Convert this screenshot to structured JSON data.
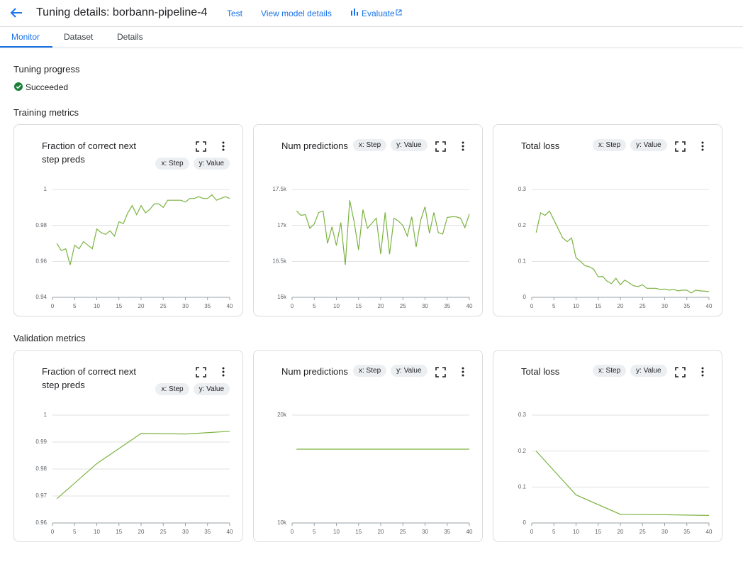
{
  "header": {
    "title": "Tuning details: borbann-pipeline-4",
    "links": [
      "Test",
      "View model details",
      "Evaluate"
    ]
  },
  "tabs": [
    "Monitor",
    "Dataset",
    "Details"
  ],
  "progress": {
    "title": "Tuning progress",
    "status": "Succeeded"
  },
  "training_metrics": {
    "title": "Training metrics",
    "charts": [
      {
        "type": "line",
        "title": "Fraction of correct next step preds",
        "x_chip": "x: Step",
        "y_chip": "y: Value",
        "color": "#7cb342",
        "grid": true,
        "x": [
          1,
          2,
          3,
          4,
          5,
          6,
          7,
          8,
          9,
          10,
          11,
          12,
          13,
          14,
          15,
          16,
          17,
          18,
          19,
          20,
          21,
          22,
          23,
          24,
          25,
          26,
          27,
          28,
          29,
          30,
          31,
          32,
          33,
          34,
          35,
          36,
          37,
          38,
          39,
          40
        ],
        "values": [
          0.97,
          0.966,
          0.967,
          0.958,
          0.969,
          0.967,
          0.971,
          0.969,
          0.967,
          0.978,
          0.976,
          0.975,
          0.977,
          0.974,
          0.982,
          0.981,
          0.987,
          0.991,
          0.986,
          0.991,
          0.987,
          0.989,
          0.992,
          0.992,
          0.99,
          0.994,
          0.994,
          0.994,
          0.994,
          0.993,
          0.995,
          0.995,
          0.996,
          0.995,
          0.995,
          0.997,
          0.994,
          0.995,
          0.996,
          0.995
        ],
        "xlim": [
          0,
          40
        ],
        "ylim": [
          0.94,
          1
        ],
        "xticks": [
          0,
          5,
          10,
          15,
          20,
          25,
          30,
          35,
          40
        ],
        "yticks": [
          0.94,
          0.96,
          0.98,
          1
        ]
      },
      {
        "type": "line",
        "title": "Num predictions",
        "x_chip": "x: Step",
        "y_chip": "y: Value",
        "color": "#7cb342",
        "grid": true,
        "x": [
          1,
          2,
          3,
          4,
          5,
          6,
          7,
          8,
          9,
          10,
          11,
          12,
          13,
          14,
          15,
          16,
          17,
          18,
          19,
          20,
          21,
          22,
          23,
          24,
          25,
          26,
          27,
          28,
          29,
          30,
          31,
          32,
          33,
          34,
          35,
          36,
          37,
          38,
          39,
          40
        ],
        "values": [
          17200,
          17140,
          17150,
          16960,
          17020,
          17180,
          17200,
          16750,
          16980,
          16720,
          17040,
          16450,
          17350,
          17050,
          16660,
          17220,
          16960,
          17030,
          17100,
          16600,
          17180,
          16600,
          17100,
          17060,
          17000,
          16850,
          17120,
          16700,
          17070,
          17260,
          16890,
          17180,
          16900,
          16880,
          17110,
          17120,
          17120,
          17100,
          16970,
          17160
        ],
        "xlim": [
          0,
          40
        ],
        "ylim": [
          16000,
          17500
        ],
        "xticks": [
          0,
          5,
          10,
          15,
          20,
          25,
          30,
          35,
          40
        ],
        "yticks": [
          {
            "value": 16000,
            "label": "16k"
          },
          {
            "value": 16500,
            "label": "16.5k"
          },
          {
            "value": 17000,
            "label": "17k"
          },
          {
            "value": 17500,
            "label": "17.5k"
          }
        ]
      },
      {
        "type": "line",
        "title": "Total loss",
        "x_chip": "x: Step",
        "y_chip": "y: Value",
        "color": "#7cb342",
        "grid": true,
        "x": [
          1,
          2,
          3,
          4,
          5,
          6,
          7,
          8,
          9,
          10,
          11,
          12,
          13,
          14,
          15,
          16,
          17,
          18,
          19,
          20,
          21,
          22,
          23,
          24,
          25,
          26,
          27,
          28,
          29,
          30,
          31,
          32,
          33,
          34,
          35,
          36,
          37,
          38,
          39,
          40
        ],
        "values": [
          0.18,
          0.235,
          0.228,
          0.24,
          0.215,
          0.19,
          0.165,
          0.155,
          0.165,
          0.11,
          0.1,
          0.088,
          0.085,
          0.078,
          0.057,
          0.058,
          0.045,
          0.038,
          0.053,
          0.035,
          0.048,
          0.04,
          0.032,
          0.03,
          0.035,
          0.025,
          0.025,
          0.025,
          0.022,
          0.023,
          0.02,
          0.022,
          0.018,
          0.02,
          0.02,
          0.012,
          0.02,
          0.018,
          0.017,
          0.016
        ],
        "xlim": [
          0,
          40
        ],
        "ylim": [
          0,
          0.3
        ],
        "xticks": [
          0,
          5,
          10,
          15,
          20,
          25,
          30,
          35,
          40
        ],
        "yticks": [
          0,
          0.1,
          0.2,
          0.3
        ]
      }
    ]
  },
  "validation_metrics": {
    "title": "Validation metrics",
    "charts": [
      {
        "type": "line",
        "title": "Fraction of correct next step preds",
        "x_chip": "x: Step",
        "y_chip": "y: Value",
        "color": "#7cb342",
        "grid": true,
        "x": [
          1,
          10,
          20,
          30,
          40
        ],
        "values": [
          0.969,
          0.982,
          0.9932,
          0.993,
          0.994
        ],
        "xlim": [
          0,
          40
        ],
        "ylim": [
          0.96,
          1
        ],
        "xticks": [
          0,
          5,
          10,
          15,
          20,
          25,
          30,
          35,
          40
        ],
        "yticks": [
          0.96,
          0.97,
          0.98,
          0.99,
          1
        ]
      },
      {
        "type": "line",
        "title": "Num predictions",
        "x_chip": "x: Step",
        "y_chip": "y: Value",
        "color": "#7cb342",
        "grid": true,
        "x": [
          1,
          10,
          20,
          30,
          40
        ],
        "values": [
          16840,
          16840,
          16840,
          16840,
          16840
        ],
        "xlim": [
          0,
          40
        ],
        "ylim": [
          10000,
          20000
        ],
        "xticks": [
          0,
          5,
          10,
          15,
          20,
          25,
          30,
          35,
          40
        ],
        "yticks": [
          {
            "value": 10000,
            "label": "10k"
          },
          {
            "value": 20000,
            "label": "20k"
          }
        ]
      },
      {
        "type": "line",
        "title": "Total loss",
        "x_chip": "x: Step",
        "y_chip": "y: Value",
        "color": "#7cb342",
        "grid": true,
        "x": [
          1,
          10,
          20,
          30,
          40
        ],
        "values": [
          0.2,
          0.078,
          0.024,
          0.023,
          0.021
        ],
        "xlim": [
          0,
          40
        ],
        "ylim": [
          0,
          0.3
        ],
        "xticks": [
          0,
          5,
          10,
          15,
          20,
          25,
          30,
          35,
          40
        ],
        "yticks": [
          0,
          0.1,
          0.2,
          0.3
        ]
      }
    ]
  }
}
